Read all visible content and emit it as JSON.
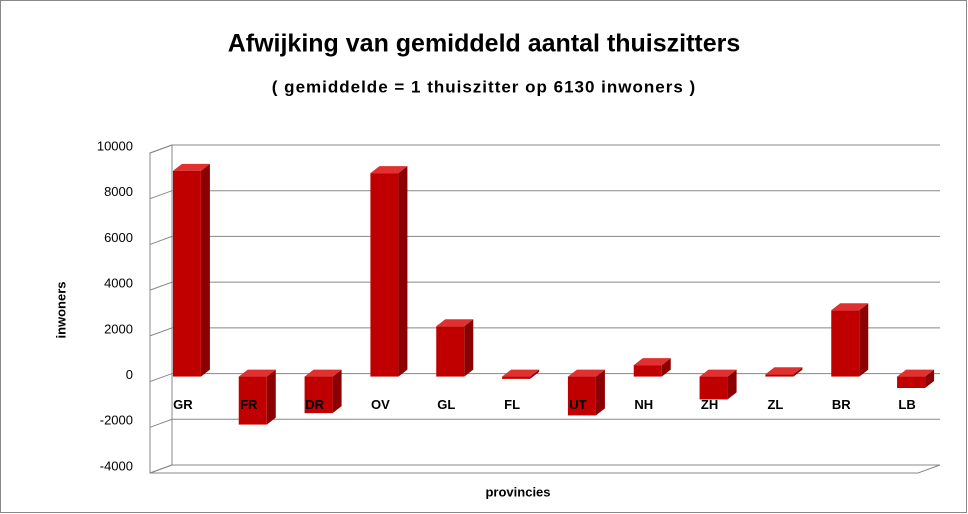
{
  "chart_data": {
    "type": "bar3d",
    "title": "Afwijking van gemiddeld aantal thuiszitters",
    "subtitle": "( gemiddelde = 1 thuiszitter op 6130 inwoners )",
    "y_label": "inwoners",
    "x_label": "provincies",
    "categories": [
      "GR",
      "FR",
      "DR",
      "OV",
      "GL",
      "FL",
      "UT",
      "NH",
      "ZH",
      "ZL",
      "BR",
      "LB"
    ],
    "values": [
      9000,
      -2100,
      -1600,
      8900,
      2200,
      -100,
      -1700,
      500,
      -1000,
      100,
      2900,
      -500
    ],
    "color": "#c00000",
    "ylim": [
      -4000,
      10000
    ],
    "yticks": [
      -4000,
      -2000,
      0,
      2000,
      4000,
      6000,
      8000,
      10000
    ],
    "grid": true
  }
}
